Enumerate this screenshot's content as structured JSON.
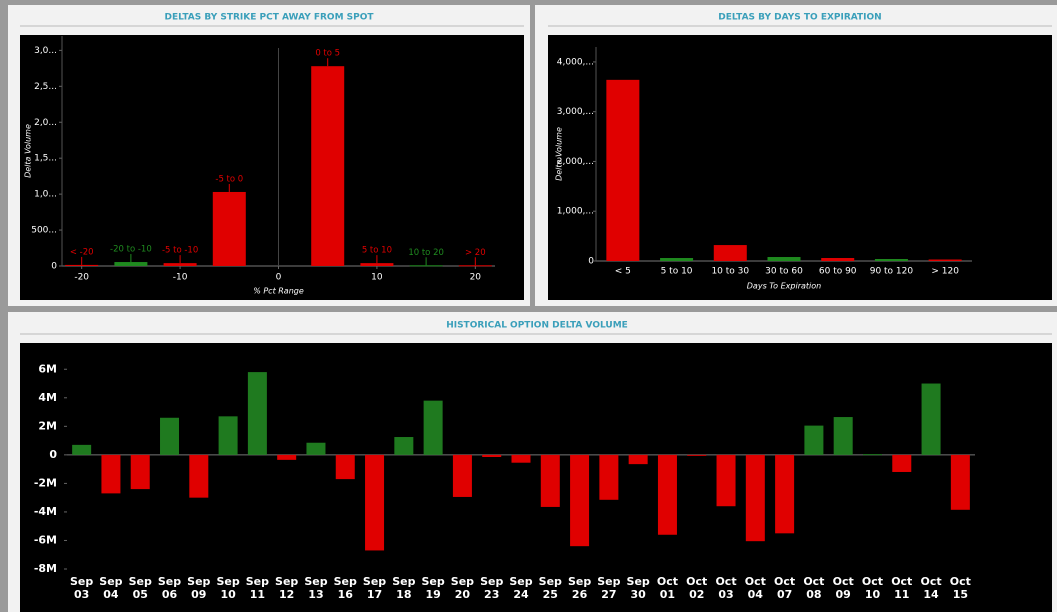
{
  "chart_data": [
    {
      "type": "bar",
      "title": "DELTAS BY STRIKE PCT AWAY FROM SPOT",
      "x_label": "% Pct Range",
      "y_label": "Delta Volume",
      "categories": [
        "< -20",
        "-20 to -10",
        "-5 to -10",
        "-5 to 0",
        "0 to 5",
        "5 to 10",
        "10 to 20",
        "> 20"
      ],
      "x": [
        -20,
        -15,
        -10,
        -5,
        5,
        10,
        15,
        20
      ],
      "values": [
        15,
        55,
        40,
        1030,
        2780,
        40,
        10,
        10
      ],
      "colors": [
        "#e00000",
        "#1f8a1f",
        "#e00000",
        "#e00000",
        "#e00000",
        "#e00000",
        "#1f8a1f",
        "#e00000"
      ],
      "xlim": [
        -22,
        22
      ],
      "xticks": [
        -20,
        -10,
        0,
        10,
        20
      ],
      "ylim": [
        0,
        3200
      ],
      "yticks": [
        0,
        {
          "value": 500,
          "label": "500..."
        },
        {
          "value": 1000,
          "label": "1,0..."
        },
        {
          "value": 1500,
          "label": "1,5..."
        },
        {
          "value": 2000,
          "label": "2,0..."
        },
        {
          "value": 2500,
          "label": "2,5..."
        },
        {
          "value": 3000,
          "label": "3,0..."
        }
      ]
    },
    {
      "type": "bar",
      "title": "DELTAS BY DAYS TO EXPIRATION",
      "x_label": "Days To Expiration",
      "y_label": "Delta Volume",
      "categories": [
        "< 5",
        "5 to 10",
        "10 to 30",
        "30 to 60",
        "60 to 90",
        "90 to 120",
        "> 120"
      ],
      "values": [
        3640,
        60,
        320,
        80,
        60,
        40,
        30
      ],
      "colors": [
        "#e00000",
        "#1f8a1f",
        "#e00000",
        "#1f8a1f",
        "#e00000",
        "#1f8a1f",
        "#e00000"
      ],
      "ylim": [
        0,
        4300
      ],
      "yticks": [
        0,
        {
          "value": 1000,
          "label": "1,000,..."
        },
        {
          "value": 2000,
          "label": "2,000,..."
        },
        {
          "value": 3000,
          "label": "3,000,..."
        },
        {
          "value": 4000,
          "label": "4,000,..."
        }
      ]
    },
    {
      "type": "bar",
      "title": "HISTORICAL OPTION DELTA VOLUME",
      "categories": [
        "Sep 03",
        "Sep 04",
        "Sep 05",
        "Sep 06",
        "Sep 09",
        "Sep 10",
        "Sep 11",
        "Sep 12",
        "Sep 13",
        "Sep 16",
        "Sep 17",
        "Sep 18",
        "Sep 19",
        "Sep 20",
        "Sep 23",
        "Sep 24",
        "Sep 25",
        "Sep 26",
        "Sep 27",
        "Sep 30",
        "Oct 01",
        "Oct 02",
        "Oct 03",
        "Oct 04",
        "Oct 07",
        "Oct 08",
        "Oct 09",
        "Oct 10",
        "Oct 11",
        "Oct 14",
        "Oct 15"
      ],
      "values": [
        700000,
        -2700000,
        -2400000,
        2600000,
        -3000000,
        2700000,
        5800000,
        -350000,
        850000,
        -1700000,
        -6700000,
        1250000,
        3800000,
        -2950000,
        -150000,
        -550000,
        -3650000,
        -6400000,
        -3150000,
        -650000,
        -5600000,
        -70000,
        -3600000,
        -6050000,
        -5500000,
        2050000,
        2650000,
        50000,
        -1200000,
        5000000,
        -3850000
      ],
      "positive_color": "#1f7a1f",
      "negative_color": "#e00000",
      "ylim": [
        -8000000,
        7700000
      ],
      "yticks": [
        {
          "value": -8000000,
          "label": "-8M"
        },
        {
          "value": -6000000,
          "label": "-6M"
        },
        {
          "value": -4000000,
          "label": "-4M"
        },
        {
          "value": -2000000,
          "label": "-2M"
        },
        0,
        {
          "value": 2000000,
          "label": "2M"
        },
        {
          "value": 4000000,
          "label": "4M"
        },
        {
          "value": 6000000,
          "label": "6M"
        }
      ]
    }
  ]
}
